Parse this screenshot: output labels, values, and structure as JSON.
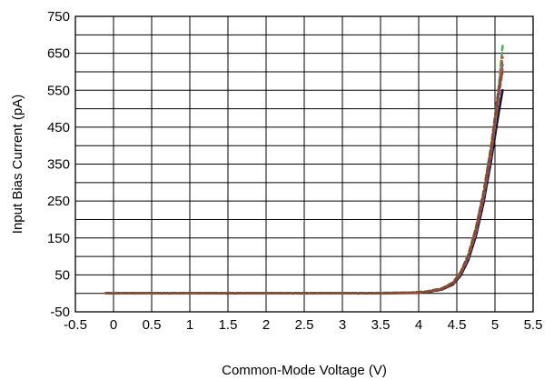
{
  "chart_data": {
    "type": "line",
    "title": "",
    "xlabel": "Common-Mode Voltage (V)",
    "ylabel": "Input Bias Current (pA)",
    "xlim": [
      -0.5,
      5.5
    ],
    "ylim": [
      -50,
      750
    ],
    "xticks": [
      -0.5,
      0,
      0.5,
      1,
      1.5,
      2,
      2.5,
      3,
      3.5,
      4,
      4.5,
      5,
      5.5
    ],
    "xtick_labels": [
      "-0.5",
      "0",
      "0.5",
      "1",
      "1.5",
      "2",
      "2.5",
      "3",
      "3.5",
      "4",
      "4.5",
      "5",
      "5.5"
    ],
    "yticks": [
      -50,
      50,
      150,
      250,
      350,
      450,
      550,
      650,
      750
    ],
    "ytick_labels": [
      "-50",
      "50",
      "150",
      "250",
      "350",
      "450",
      "550",
      "650",
      "750"
    ],
    "xgrid_values": [
      -0.5,
      0,
      0.5,
      1,
      1.5,
      2,
      2.5,
      3,
      3.5,
      4,
      4.5,
      5,
      5.5
    ],
    "ygrid_values": [
      -50,
      0,
      50,
      100,
      150,
      200,
      250,
      300,
      350,
      400,
      450,
      500,
      550,
      600,
      650,
      700,
      750
    ],
    "grid": true,
    "legend": "none",
    "series": [
      {
        "color": "#1a1a1a",
        "x": [
          -0.1,
          0.5,
          1,
          1.5,
          2,
          2.5,
          3,
          3.5,
          3.9,
          4.1,
          4.3,
          4.45,
          4.55,
          4.65,
          4.75,
          4.85,
          4.95,
          5.05,
          5.1
        ],
        "y": [
          0,
          0,
          0,
          0,
          0,
          0,
          0,
          0,
          1,
          3,
          10,
          24,
          48,
          90,
          155,
          245,
          360,
          490,
          550
        ]
      },
      {
        "color": "#3f7fbf",
        "x": [
          -0.1,
          0.5,
          1,
          1.5,
          2,
          2.5,
          3,
          3.5,
          3.9,
          4.1,
          4.3,
          4.45,
          4.55,
          4.65,
          4.75,
          4.85,
          4.95,
          5.05,
          5.1
        ],
        "y": [
          1,
          1,
          0,
          1,
          0,
          1,
          1,
          1,
          2,
          4,
          12,
          28,
          55,
          100,
          170,
          265,
          385,
          540,
          620
        ]
      },
      {
        "color": "#8a4fa8",
        "x": [
          -0.1,
          0.5,
          1,
          1.5,
          2,
          2.5,
          3,
          3.5,
          3.9,
          4.1,
          4.3,
          4.45,
          4.55,
          4.65,
          4.75,
          4.85,
          4.95,
          5.05,
          5.1
        ],
        "y": [
          0,
          1,
          1,
          0,
          1,
          0,
          1,
          0,
          2,
          4,
          12,
          27,
          53,
          97,
          165,
          258,
          378,
          530,
          610
        ]
      },
      {
        "color": "#5aa85a",
        "x": [
          -0.1,
          0.5,
          1,
          1.5,
          2,
          2.5,
          3,
          3.5,
          3.9,
          4.1,
          4.3,
          4.45,
          4.55,
          4.65,
          4.75,
          4.85,
          4.95,
          5.05,
          5.1
        ],
        "y": [
          1,
          0,
          1,
          1,
          0,
          1,
          0,
          1,
          2,
          5,
          13,
          30,
          58,
          105,
          178,
          275,
          400,
          560,
          670
        ]
      },
      {
        "color": "#c0504d",
        "x": [
          -0.1,
          0.5,
          1,
          1.5,
          2,
          2.5,
          3,
          3.5,
          3.9,
          4.1,
          4.3,
          4.45,
          4.55,
          4.65,
          4.75,
          4.85,
          4.95,
          5.05,
          5.1
        ],
        "y": [
          0,
          1,
          0,
          1,
          1,
          0,
          1,
          1,
          2,
          4,
          12,
          28,
          56,
          102,
          173,
          270,
          392,
          550,
          640
        ]
      },
      {
        "color": "#8b4a2b",
        "x": [
          -0.1,
          0.5,
          1,
          1.5,
          2,
          2.5,
          3,
          3.5,
          3.9,
          4.1,
          4.3,
          4.45,
          4.55,
          4.65,
          4.75,
          4.85,
          4.95,
          5.05,
          5.1
        ],
        "y": [
          1,
          1,
          1,
          1,
          1,
          1,
          1,
          1,
          2,
          5,
          13,
          29,
          57,
          103,
          175,
          272,
          395,
          555,
          600
        ]
      }
    ]
  }
}
